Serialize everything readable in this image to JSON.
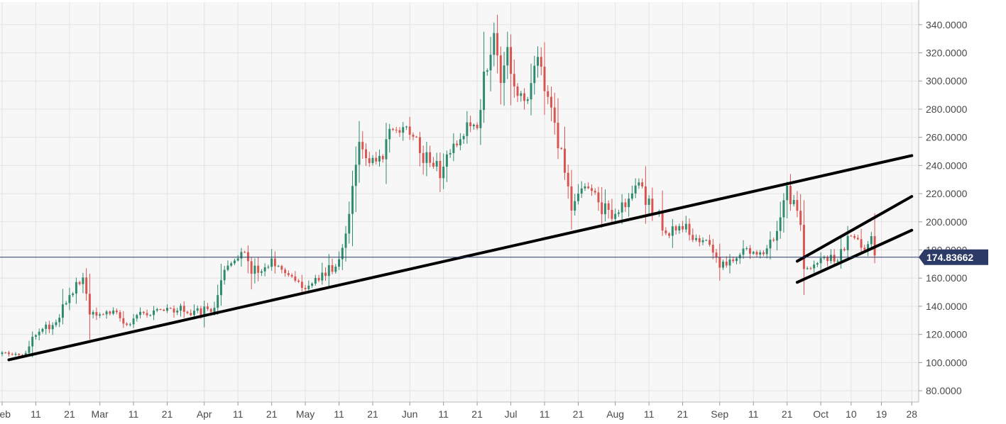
{
  "chart_data": {
    "type": "candlestick",
    "colors": {
      "up": "#2d8a6e",
      "down": "#d9534f",
      "trendline": "#000000",
      "price_line": "#2b3a67",
      "price_badge": "#2b3a67",
      "grid": "#e3e3e3",
      "plot_bg": "#f7f7f7"
    },
    "ylim": [
      72,
      356
    ],
    "y_ticks": [
      {
        "value": 80,
        "label": "80.0000"
      },
      {
        "value": 100,
        "label": "100.0000"
      },
      {
        "value": 120,
        "label": "120.0000"
      },
      {
        "value": 140,
        "label": "140.0000"
      },
      {
        "value": 160,
        "label": "160.0000"
      },
      {
        "value": 180,
        "label": "180.0000"
      },
      {
        "value": 200,
        "label": "200.0000"
      },
      {
        "value": 220,
        "label": "220.0000"
      },
      {
        "value": 240,
        "label": "240.0000"
      },
      {
        "value": 260,
        "label": "260.0000"
      },
      {
        "value": 280,
        "label": "280.0000"
      },
      {
        "value": 300,
        "label": "300.0000"
      },
      {
        "value": 320,
        "label": "320.0000"
      },
      {
        "value": 340,
        "label": "340.0000"
      }
    ],
    "x_range": [
      "2020-02-01",
      "2020-10-29"
    ],
    "x_ticks": [
      {
        "date": "2020-02-01",
        "label": "Feb"
      },
      {
        "date": "2020-02-11",
        "label": "11"
      },
      {
        "date": "2020-02-21",
        "label": "21"
      },
      {
        "date": "2020-03-01",
        "label": "Mar"
      },
      {
        "date": "2020-03-11",
        "label": "11"
      },
      {
        "date": "2020-03-21",
        "label": "21"
      },
      {
        "date": "2020-04-01",
        "label": "Apr"
      },
      {
        "date": "2020-04-11",
        "label": "11"
      },
      {
        "date": "2020-04-21",
        "label": "21"
      },
      {
        "date": "2020-05-01",
        "label": "May"
      },
      {
        "date": "2020-05-11",
        "label": "11"
      },
      {
        "date": "2020-05-21",
        "label": "21"
      },
      {
        "date": "2020-06-01",
        "label": "Jun"
      },
      {
        "date": "2020-06-11",
        "label": "11"
      },
      {
        "date": "2020-06-21",
        "label": "21"
      },
      {
        "date": "2020-07-01",
        "label": "Jul"
      },
      {
        "date": "2020-07-11",
        "label": "11"
      },
      {
        "date": "2020-07-21",
        "label": "21"
      },
      {
        "date": "2020-08-01",
        "label": "Aug"
      },
      {
        "date": "2020-08-11",
        "label": "11"
      },
      {
        "date": "2020-08-21",
        "label": "21"
      },
      {
        "date": "2020-09-01",
        "label": "Sep"
      },
      {
        "date": "2020-09-11",
        "label": "11"
      },
      {
        "date": "2020-09-21",
        "label": "21"
      },
      {
        "date": "2020-10-01",
        "label": "Oct"
      },
      {
        "date": "2020-10-10",
        "label": "10"
      },
      {
        "date": "2020-10-19",
        "label": "19"
      },
      {
        "date": "2020-10-28",
        "label": "28"
      }
    ],
    "current_price": {
      "value": 174.83662,
      "label": "174.83662"
    },
    "trendlines": [
      {
        "from": {
          "date": "2020-02-03",
          "value": 102
        },
        "to": {
          "date": "2020-10-28",
          "value": 247
        }
      },
      {
        "from": {
          "date": "2020-09-24",
          "value": 172
        },
        "to": {
          "date": "2020-10-28",
          "value": 218
        }
      },
      {
        "from": {
          "date": "2020-09-24",
          "value": 157
        },
        "to": {
          "date": "2020-10-28",
          "value": 194
        }
      }
    ],
    "key_points": [
      {
        "date": "2020-02-01",
        "value": 106
      },
      {
        "date": "2020-02-07",
        "value": 104
      },
      {
        "date": "2020-02-11",
        "value": 122
      },
      {
        "date": "2020-02-16",
        "value": 126
      },
      {
        "date": "2020-02-21",
        "value": 148
      },
      {
        "date": "2020-02-25",
        "value": 160
      },
      {
        "date": "2020-02-27",
        "value": 136
      },
      {
        "date": "2020-03-05",
        "value": 135
      },
      {
        "date": "2020-03-09",
        "value": 128
      },
      {
        "date": "2020-03-15",
        "value": 136
      },
      {
        "date": "2020-03-22",
        "value": 138
      },
      {
        "date": "2020-03-31",
        "value": 136
      },
      {
        "date": "2020-04-04",
        "value": 140
      },
      {
        "date": "2020-04-06",
        "value": 162
      },
      {
        "date": "2020-04-10",
        "value": 175
      },
      {
        "date": "2020-04-12",
        "value": 180
      },
      {
        "date": "2020-04-15",
        "value": 165
      },
      {
        "date": "2020-04-21",
        "value": 172
      },
      {
        "date": "2020-04-27",
        "value": 162
      },
      {
        "date": "2020-04-30",
        "value": 154
      },
      {
        "date": "2020-05-06",
        "value": 162
      },
      {
        "date": "2020-05-11",
        "value": 172
      },
      {
        "date": "2020-05-13",
        "value": 188
      },
      {
        "date": "2020-05-15",
        "value": 224
      },
      {
        "date": "2020-05-17",
        "value": 262
      },
      {
        "date": "2020-05-20",
        "value": 244
      },
      {
        "date": "2020-05-24",
        "value": 248
      },
      {
        "date": "2020-05-27",
        "value": 268
      },
      {
        "date": "2020-05-31",
        "value": 264
      },
      {
        "date": "2020-06-02",
        "value": 262
      },
      {
        "date": "2020-06-05",
        "value": 246
      },
      {
        "date": "2020-06-08",
        "value": 242
      },
      {
        "date": "2020-06-10",
        "value": 234
      },
      {
        "date": "2020-06-12",
        "value": 248
      },
      {
        "date": "2020-06-16",
        "value": 262
      },
      {
        "date": "2020-06-19",
        "value": 270
      },
      {
        "date": "2020-06-21",
        "value": 268
      },
      {
        "date": "2020-06-23",
        "value": 302
      },
      {
        "date": "2020-06-25",
        "value": 315
      },
      {
        "date": "2020-06-26",
        "value": 330
      },
      {
        "date": "2020-06-28",
        "value": 300
      },
      {
        "date": "2020-06-30",
        "value": 320
      },
      {
        "date": "2020-07-02",
        "value": 298
      },
      {
        "date": "2020-07-06",
        "value": 290
      },
      {
        "date": "2020-07-09",
        "value": 312
      },
      {
        "date": "2020-07-12",
        "value": 290
      },
      {
        "date": "2020-07-14",
        "value": 268
      },
      {
        "date": "2020-07-17",
        "value": 236
      },
      {
        "date": "2020-07-19",
        "value": 205
      },
      {
        "date": "2020-07-21",
        "value": 218
      },
      {
        "date": "2020-07-24",
        "value": 226
      },
      {
        "date": "2020-07-28",
        "value": 210
      },
      {
        "date": "2020-08-01",
        "value": 205
      },
      {
        "date": "2020-08-04",
        "value": 214
      },
      {
        "date": "2020-08-08",
        "value": 226
      },
      {
        "date": "2020-08-11",
        "value": 212
      },
      {
        "date": "2020-08-14",
        "value": 206
      },
      {
        "date": "2020-08-16",
        "value": 188
      },
      {
        "date": "2020-08-20",
        "value": 200
      },
      {
        "date": "2020-08-25",
        "value": 188
      },
      {
        "date": "2020-08-29",
        "value": 182
      },
      {
        "date": "2020-09-01",
        "value": 170
      },
      {
        "date": "2020-09-05",
        "value": 172
      },
      {
        "date": "2020-09-08",
        "value": 178
      },
      {
        "date": "2020-09-13",
        "value": 176
      },
      {
        "date": "2020-09-17",
        "value": 186
      },
      {
        "date": "2020-09-19",
        "value": 200
      },
      {
        "date": "2020-09-21",
        "value": 222
      },
      {
        "date": "2020-09-23",
        "value": 212
      },
      {
        "date": "2020-09-25",
        "value": 198
      },
      {
        "date": "2020-09-26",
        "value": 170
      },
      {
        "date": "2020-09-28",
        "value": 164
      },
      {
        "date": "2020-10-02",
        "value": 176
      },
      {
        "date": "2020-10-06",
        "value": 174
      },
      {
        "date": "2020-10-10",
        "value": 192
      },
      {
        "date": "2020-10-13",
        "value": 180
      },
      {
        "date": "2020-10-16",
        "value": 186
      },
      {
        "date": "2020-10-17",
        "value": 178
      }
    ]
  }
}
